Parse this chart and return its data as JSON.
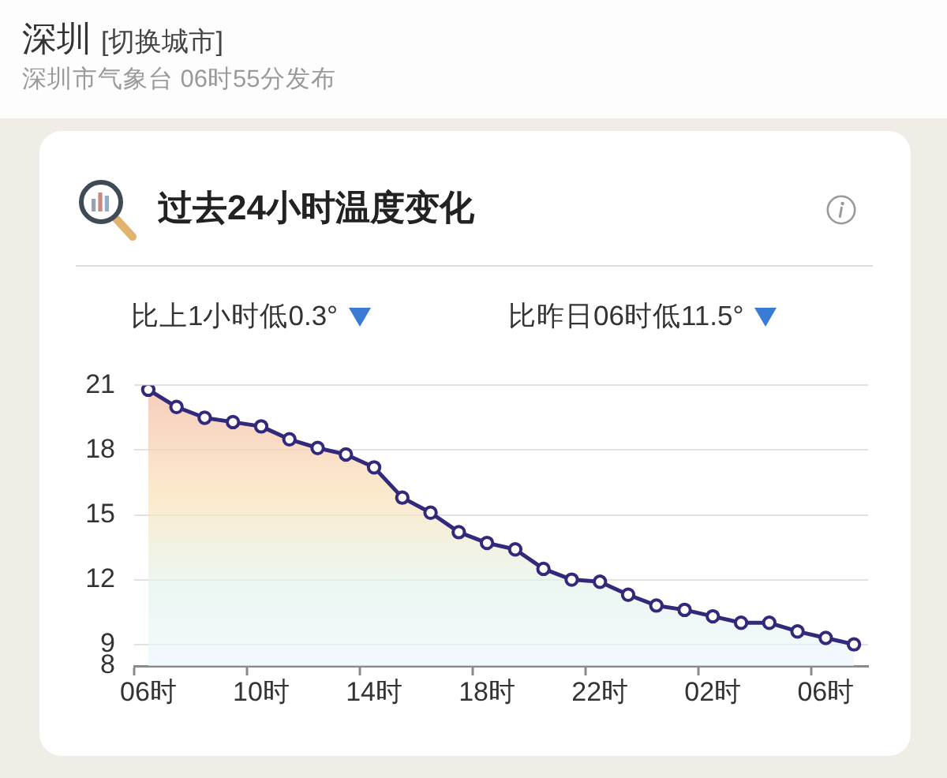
{
  "chart_data": {
    "type": "area",
    "title": "过去24小时温度变化",
    "annotations": [
      "深圳",
      "[切换城市]",
      "深圳市气象台 06时55分发布",
      "比上1小时低0.3°",
      "比昨日06时低11.5°"
    ],
    "categories": [
      "06时",
      null,
      null,
      null,
      "10时",
      null,
      null,
      null,
      "14时",
      null,
      null,
      null,
      "18时",
      null,
      null,
      null,
      "22时",
      null,
      null,
      null,
      "02时",
      null,
      null,
      null,
      "06时",
      null
    ],
    "values": [
      20.8,
      20.0,
      19.5,
      19.3,
      19.1,
      18.5,
      18.1,
      17.8,
      17.2,
      15.8,
      15.1,
      14.2,
      13.7,
      13.4,
      12.5,
      12.0,
      11.9,
      11.3,
      10.8,
      10.6,
      10.3,
      10.0,
      10.0,
      9.6,
      9.3,
      9.0
    ],
    "color": "#33297a",
    "ylim": [
      8,
      21
    ],
    "yticks": [
      8,
      9,
      12,
      15,
      18,
      21
    ],
    "grid": "y",
    "marker": "circle",
    "line_style": "solid",
    "legend": false
  }
}
